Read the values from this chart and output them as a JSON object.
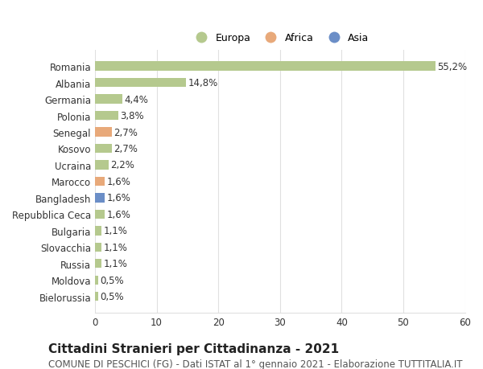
{
  "categories": [
    "Bielorussia",
    "Moldova",
    "Russia",
    "Slovacchia",
    "Bulgaria",
    "Repubblica Ceca",
    "Bangladesh",
    "Marocco",
    "Ucraina",
    "Kosovo",
    "Senegal",
    "Polonia",
    "Germania",
    "Albania",
    "Romania"
  ],
  "values": [
    0.5,
    0.5,
    1.1,
    1.1,
    1.1,
    1.6,
    1.6,
    1.6,
    2.2,
    2.7,
    2.7,
    3.8,
    4.4,
    14.8,
    55.2
  ],
  "labels": [
    "0,5%",
    "0,5%",
    "1,1%",
    "1,1%",
    "1,1%",
    "1,6%",
    "1,6%",
    "1,6%",
    "2,2%",
    "2,7%",
    "2,7%",
    "3,8%",
    "4,4%",
    "14,8%",
    "55,2%"
  ],
  "colors": [
    "#b5c98e",
    "#b5c98e",
    "#b5c98e",
    "#b5c98e",
    "#b5c98e",
    "#b5c98e",
    "#6b8ec7",
    "#e8a97a",
    "#b5c98e",
    "#b5c98e",
    "#e8a97a",
    "#b5c98e",
    "#b5c98e",
    "#b5c98e",
    "#b5c98e"
  ],
  "legend_labels": [
    "Europa",
    "Africa",
    "Asia"
  ],
  "legend_colors": [
    "#b5c98e",
    "#e8a97a",
    "#6b8ec7"
  ],
  "title": "Cittadini Stranieri per Cittadinanza - 2021",
  "subtitle": "COMUNE DI PESCHICI (FG) - Dati ISTAT al 1° gennaio 2021 - Elaborazione TUTTITALIA.IT",
  "xlim": [
    0,
    60
  ],
  "xticks": [
    0,
    10,
    20,
    30,
    40,
    50,
    60
  ],
  "bg_color": "#ffffff",
  "grid_color": "#e0e0e0",
  "bar_height": 0.55,
  "title_fontsize": 11,
  "subtitle_fontsize": 8.5,
  "label_fontsize": 8.5,
  "tick_fontsize": 8.5,
  "legend_fontsize": 9
}
